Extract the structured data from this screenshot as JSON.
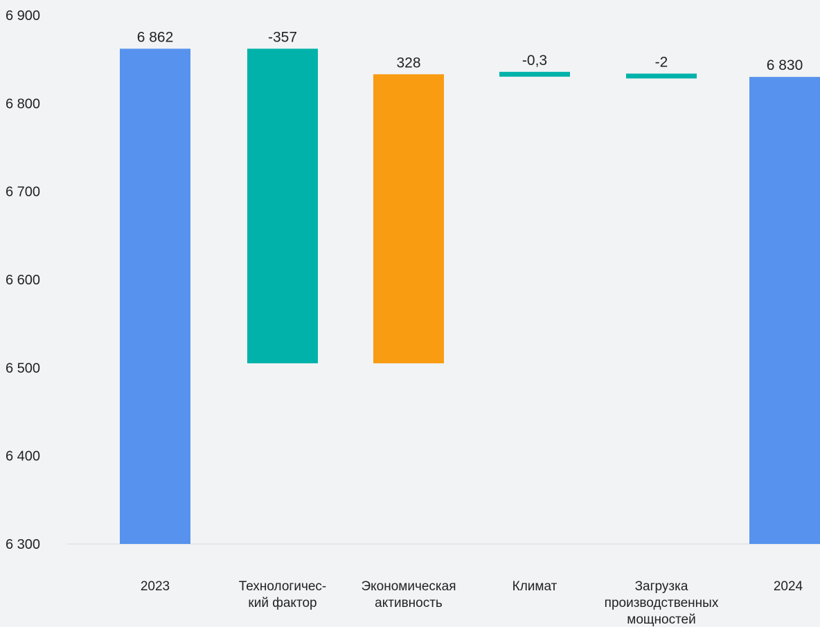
{
  "chart_data": {
    "type": "bar",
    "subtype": "waterfall",
    "categories": [
      "2023",
      "Технологичес-\nкий фактор",
      "Экономическая\nактивность",
      "Климат",
      "Загрузка\nпроизводственных\nмощностей",
      "2024"
    ],
    "values": [
      6862,
      -357,
      328,
      -0.3,
      -2,
      6830
    ],
    "data_labels": [
      "6 862",
      "-357",
      "328",
      "-0,3",
      "-2",
      "6 830"
    ],
    "bar_kinds": [
      "total",
      "change",
      "change",
      "change",
      "change",
      "total"
    ],
    "ranges": [
      [
        6300,
        6862
      ],
      [
        6505,
        6862
      ],
      [
        6505,
        6833
      ],
      [
        6833,
        6833
      ],
      [
        6831,
        6831
      ],
      [
        6300,
        6830
      ]
    ],
    "yticks": [
      "6 300",
      "6 400",
      "6 500",
      "6 600",
      "6 700",
      "6 800",
      "6 900"
    ],
    "ylim": [
      6300,
      6900
    ],
    "colors": {
      "total": "#5793ee",
      "decrease": "#00b2a9",
      "increase": "#f99c12",
      "axis": "#dfe3e7"
    },
    "bar_colors": [
      "total",
      "decrease",
      "increase",
      "decrease",
      "decrease",
      "total"
    ],
    "title": "",
    "xlabel": "",
    "ylabel": ""
  }
}
